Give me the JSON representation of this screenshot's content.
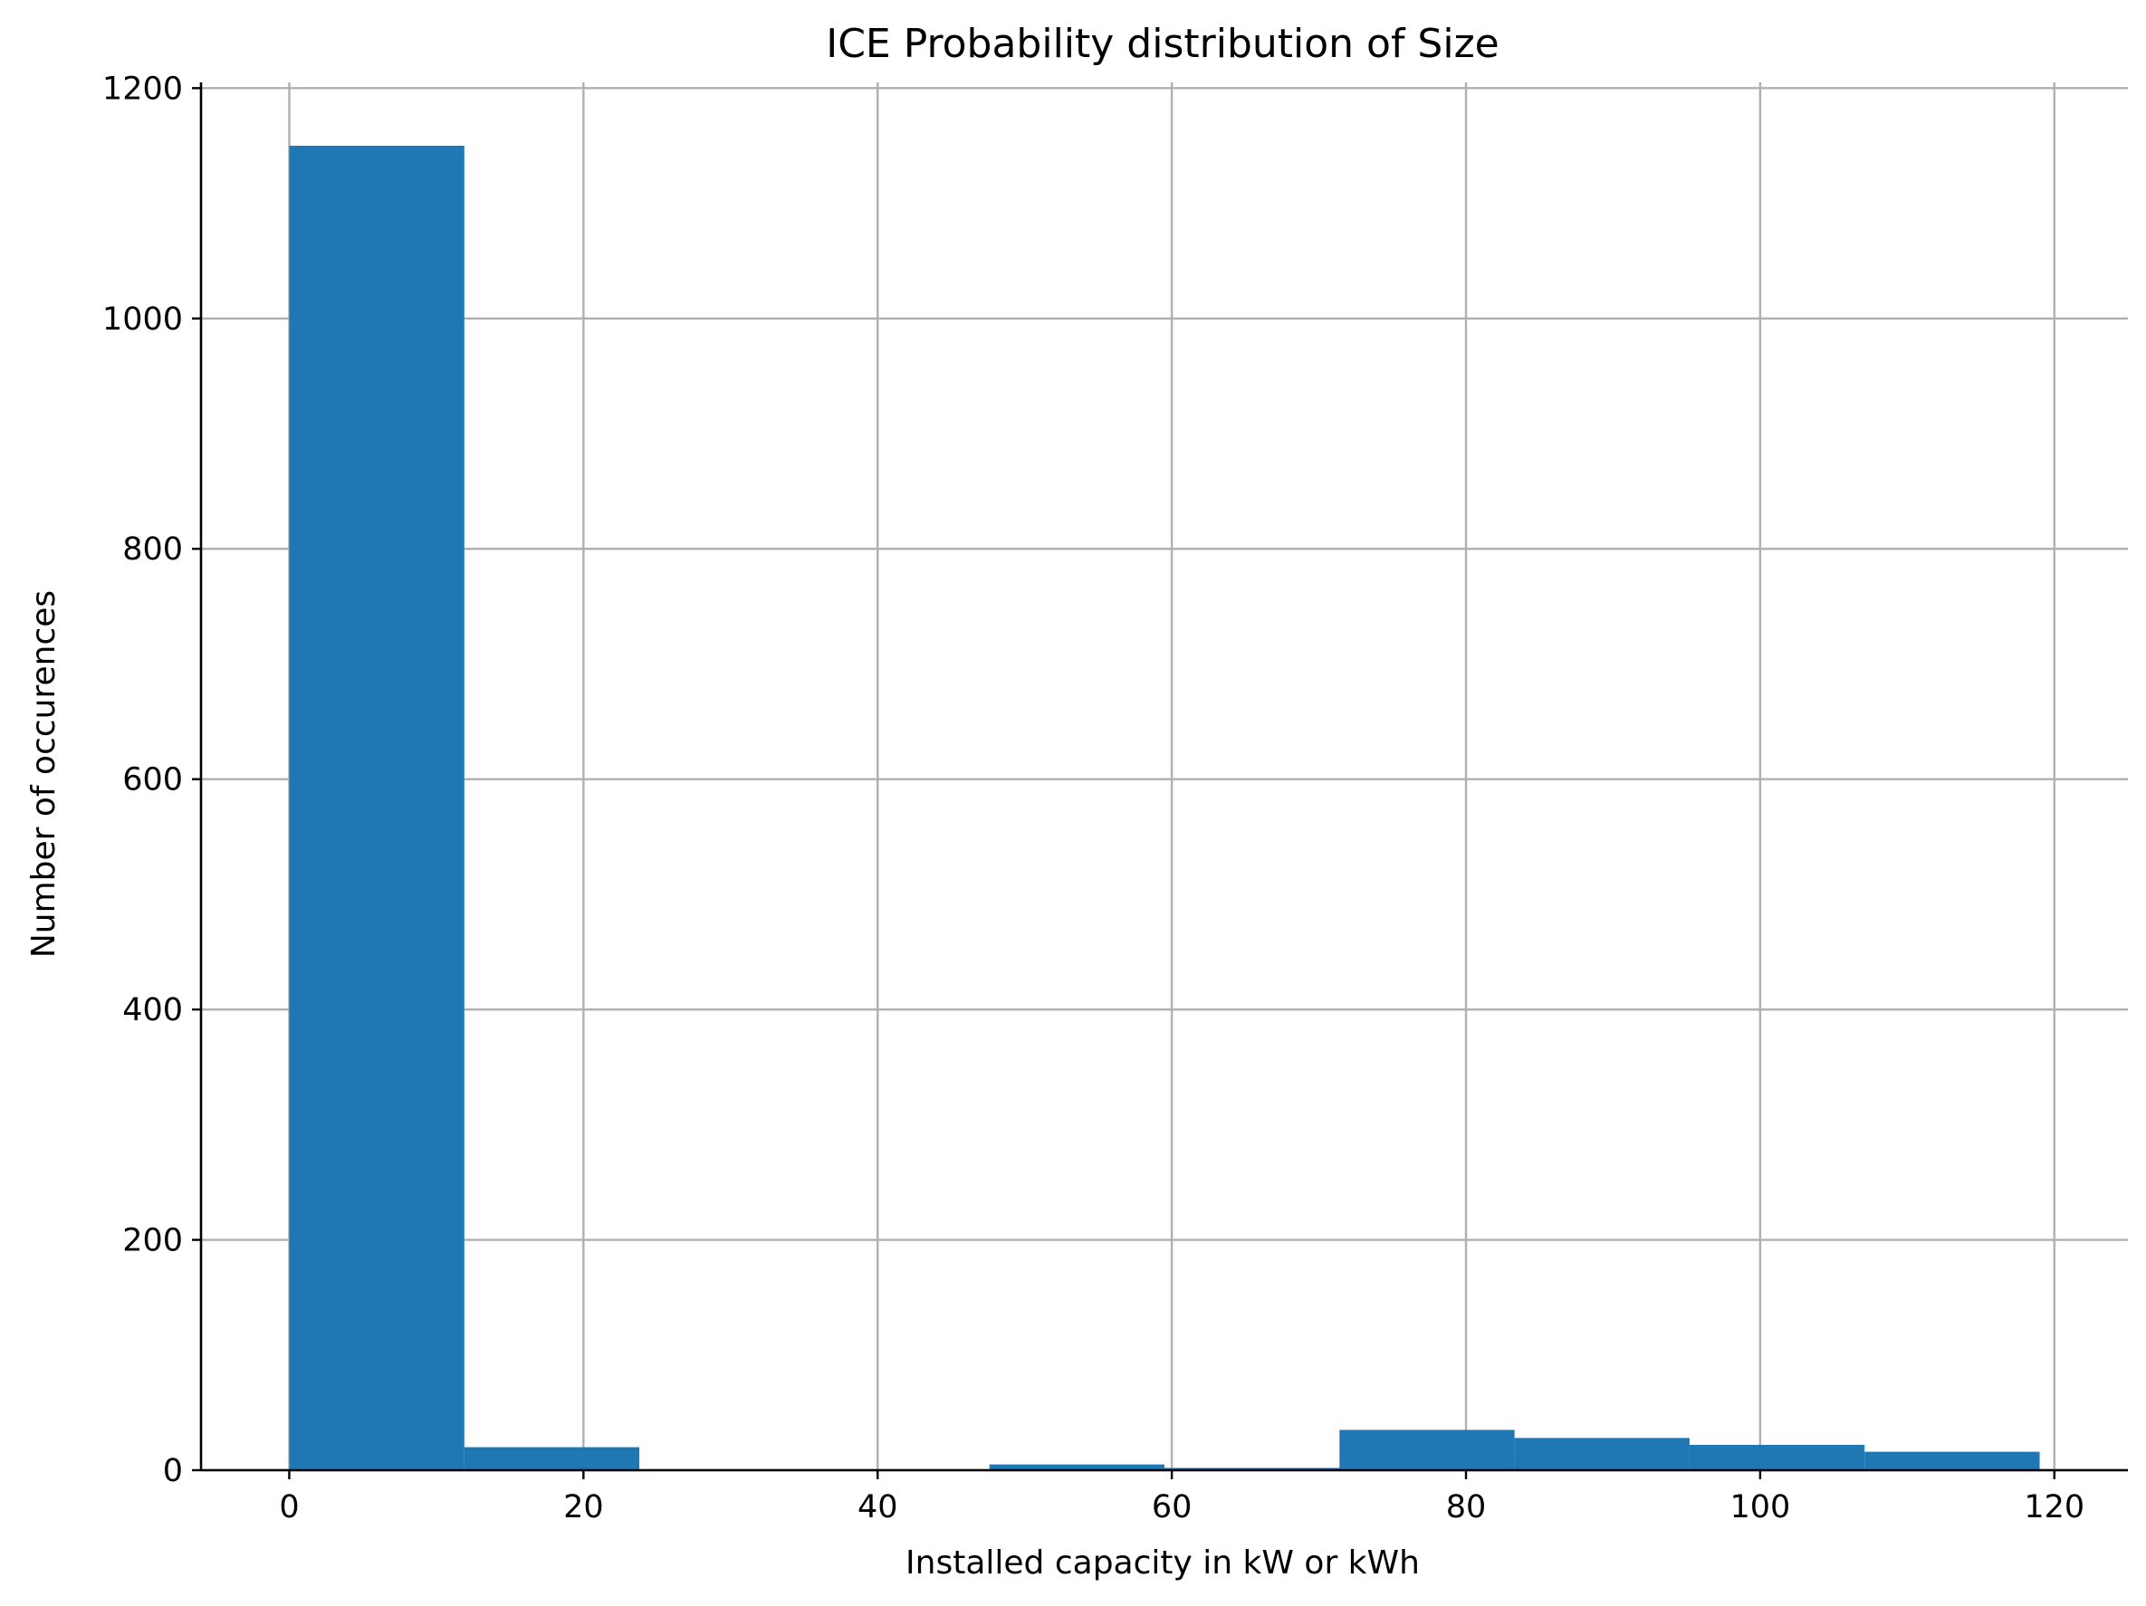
{
  "chart_data": {
    "type": "bar",
    "title": "ICE Probability distribution of Size",
    "xlabel": "Installed capacity in kW or kWh",
    "ylabel": "Number of occurences",
    "xlim": [
      -6,
      125
    ],
    "ylim": [
      0,
      1205
    ],
    "xticks": [
      0,
      20,
      40,
      60,
      80,
      100,
      120
    ],
    "yticks": [
      0,
      200,
      400,
      600,
      800,
      1000,
      1200
    ],
    "grid": true,
    "bar_color": "#1f77b4",
    "bins": [
      {
        "x0": 0.0,
        "x1": 11.9,
        "value": 1150
      },
      {
        "x0": 11.9,
        "x1": 23.8,
        "value": 20
      },
      {
        "x0": 23.8,
        "x1": 35.7,
        "value": 0
      },
      {
        "x0": 35.7,
        "x1": 47.6,
        "value": 0
      },
      {
        "x0": 47.6,
        "x1": 59.5,
        "value": 5
      },
      {
        "x0": 59.5,
        "x1": 71.4,
        "value": 2
      },
      {
        "x0": 71.4,
        "x1": 83.3,
        "value": 35
      },
      {
        "x0": 83.3,
        "x1": 95.2,
        "value": 28
      },
      {
        "x0": 95.2,
        "x1": 107.1,
        "value": 22
      },
      {
        "x0": 107.1,
        "x1": 119.0,
        "value": 16
      }
    ]
  }
}
